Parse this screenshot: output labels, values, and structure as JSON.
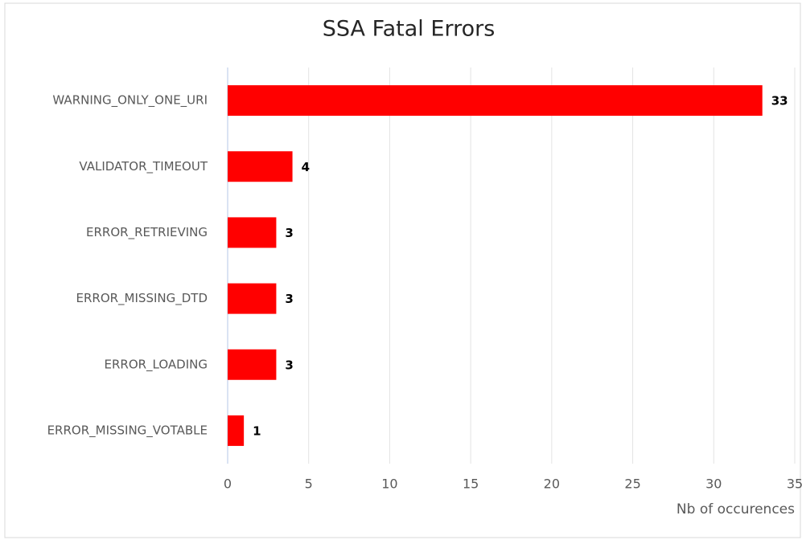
{
  "chart_data": {
    "type": "bar",
    "orientation": "horizontal",
    "title": "SSA Fatal Errors",
    "categories": [
      "WARNING_ONLY_ONE_URI",
      "VALIDATOR_TIMEOUT",
      "ERROR_RETRIEVING",
      "ERROR_MISSING_DTD",
      "ERROR_LOADING",
      "ERROR_MISSING_VOTABLE"
    ],
    "values": [
      33,
      4,
      3,
      3,
      3,
      1
    ],
    "color": "#ff0000",
    "x_label": "Nb of occurences",
    "xlim": [
      0,
      35
    ],
    "xticks": [
      0,
      5,
      10,
      15,
      20,
      25,
      30,
      35
    ],
    "grid": true
  }
}
